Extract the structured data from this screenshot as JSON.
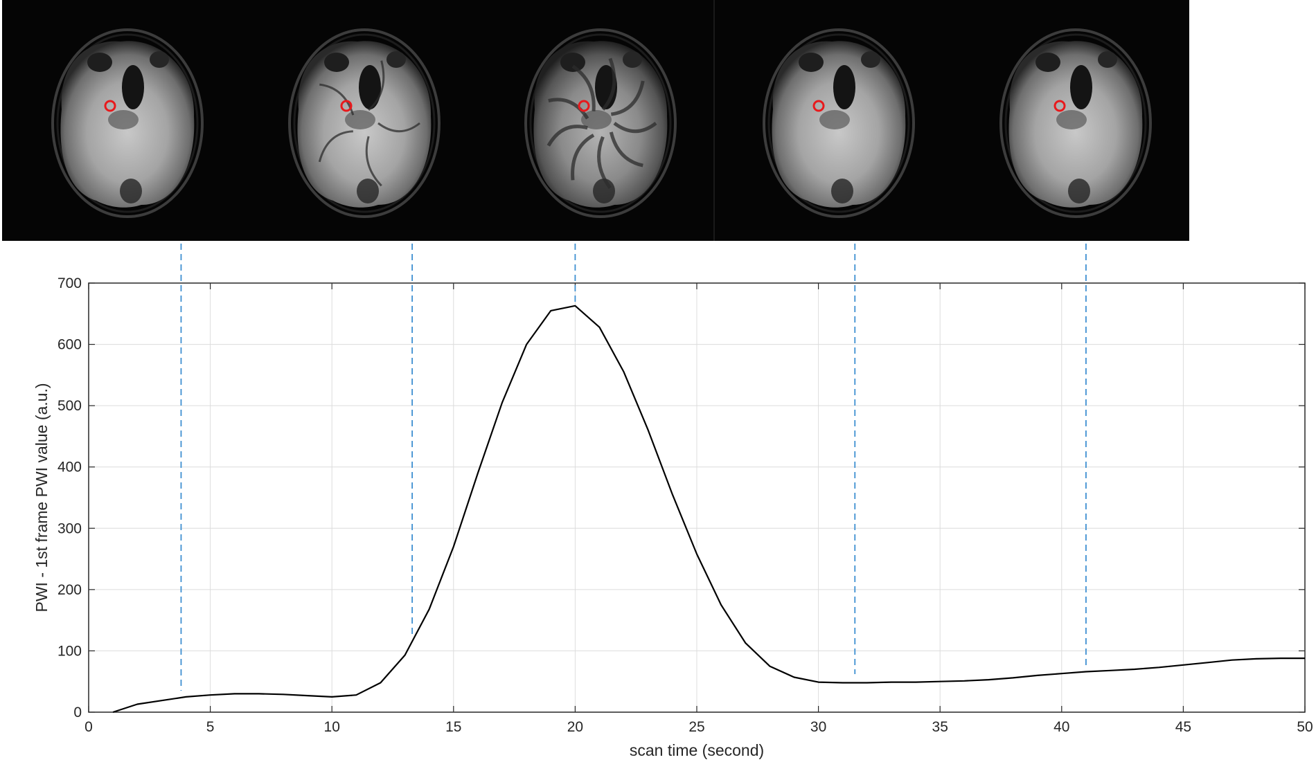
{
  "chart_data": {
    "type": "line",
    "title": "",
    "xlabel": "scan time (second)",
    "ylabel": "PWI - 1st frame PWI value (a.u.)",
    "xlim": [
      0,
      50
    ],
    "ylim": [
      0,
      700
    ],
    "xticks": [
      0,
      5,
      10,
      15,
      20,
      25,
      30,
      35,
      40,
      45,
      50
    ],
    "yticks": [
      0,
      100,
      200,
      300,
      400,
      500,
      600,
      700
    ],
    "grid": true,
    "legend": "none",
    "series": [
      {
        "color": "#000000",
        "x": [
          1,
          2,
          3,
          4,
          5,
          6,
          7,
          8,
          9,
          10,
          11,
          12,
          13,
          14,
          15,
          16,
          17,
          18,
          19,
          20,
          21,
          22,
          23,
          24,
          25,
          26,
          27,
          28,
          29,
          30,
          31,
          32,
          33,
          34,
          35,
          36,
          37,
          38,
          39,
          40,
          41,
          42,
          43,
          44,
          45,
          46,
          47,
          48,
          49,
          50
        ],
        "y": [
          0,
          13,
          19,
          25,
          28,
          30,
          30,
          29,
          27,
          25,
          28,
          48,
          93,
          168,
          270,
          390,
          505,
          600,
          655,
          663,
          628,
          555,
          460,
          355,
          258,
          175,
          113,
          75,
          57,
          49,
          48,
          48,
          49,
          49,
          50,
          51,
          53,
          56,
          60,
          63,
          66,
          68,
          70,
          73,
          77,
          81,
          85,
          87,
          88,
          88
        ]
      }
    ],
    "markers": {
      "color": "#3d8fd1",
      "style": "dashed",
      "x": [
        3.8,
        13.3,
        20.0,
        31.5,
        41.0
      ]
    }
  },
  "image_strip": {
    "frame_count": 5,
    "roi_color": "#e8191c",
    "background": "#050505"
  }
}
